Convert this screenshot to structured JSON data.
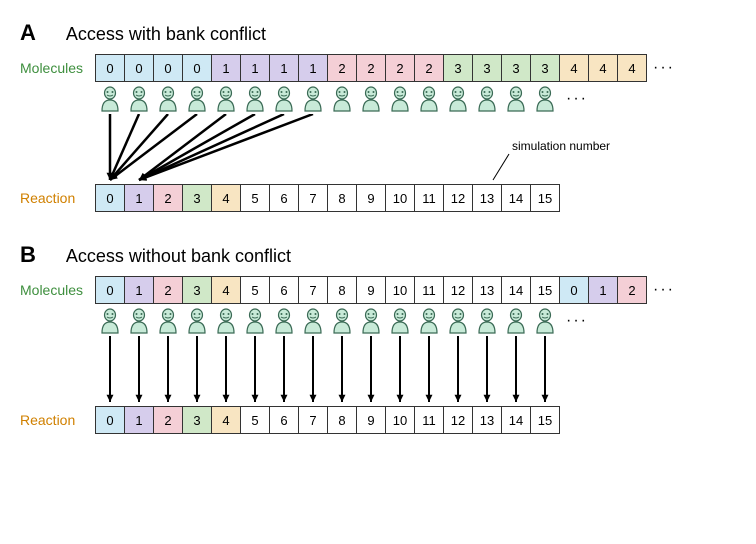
{
  "colors": {
    "c0": "#cfe9f5",
    "c1": "#d6cdec",
    "c2": "#f4cfd6",
    "c3": "#d0e8c8",
    "c4": "#f8e5c2",
    "white": "#ffffff",
    "border": "#333333",
    "label_molecules": "#3e8f3e",
    "label_reaction": "#d08000",
    "agent_fill": "#c8ead8",
    "agent_stroke": "#3a6a55",
    "text": "#222222"
  },
  "fontsize": {
    "panel_letter": 22,
    "panel_title": 18,
    "row_label": 14,
    "cell": 13,
    "annotation": 12
  },
  "cell": {
    "width": 30,
    "height": 28
  },
  "panelA": {
    "letter": "A",
    "title": "Access with bank conflict",
    "molecules_label": "Molecules",
    "molecules": [
      {
        "v": "0",
        "c": "c0"
      },
      {
        "v": "0",
        "c": "c0"
      },
      {
        "v": "0",
        "c": "c0"
      },
      {
        "v": "0",
        "c": "c0"
      },
      {
        "v": "1",
        "c": "c1"
      },
      {
        "v": "1",
        "c": "c1"
      },
      {
        "v": "1",
        "c": "c1"
      },
      {
        "v": "1",
        "c": "c1"
      },
      {
        "v": "2",
        "c": "c2"
      },
      {
        "v": "2",
        "c": "c2"
      },
      {
        "v": "2",
        "c": "c2"
      },
      {
        "v": "2",
        "c": "c2"
      },
      {
        "v": "3",
        "c": "c3"
      },
      {
        "v": "3",
        "c": "c3"
      },
      {
        "v": "3",
        "c": "c3"
      },
      {
        "v": "3",
        "c": "c3"
      },
      {
        "v": "4",
        "c": "c4"
      },
      {
        "v": "4",
        "c": "c4"
      },
      {
        "v": "4",
        "c": "c4"
      }
    ],
    "molecules_ellipsis": "···",
    "agents_count": 16,
    "agents_ellipsis": "···",
    "reaction_label": "Reaction",
    "reaction": [
      {
        "v": "0",
        "c": "c0"
      },
      {
        "v": "1",
        "c": "c1"
      },
      {
        "v": "2",
        "c": "c2"
      },
      {
        "v": "3",
        "c": "c3"
      },
      {
        "v": "4",
        "c": "c4"
      },
      {
        "v": "5",
        "c": "white"
      },
      {
        "v": "6",
        "c": "white"
      },
      {
        "v": "7",
        "c": "white"
      },
      {
        "v": "8",
        "c": "white"
      },
      {
        "v": "9",
        "c": "white"
      },
      {
        "v": "10",
        "c": "white"
      },
      {
        "v": "11",
        "c": "white"
      },
      {
        "v": "12",
        "c": "white"
      },
      {
        "v": "13",
        "c": "white"
      },
      {
        "v": "14",
        "c": "white"
      },
      {
        "v": "15",
        "c": "white"
      }
    ],
    "annotation_text": "simulation number",
    "annotation_target_index": 13,
    "arrows": {
      "group1_from_indices": [
        0,
        1,
        2,
        3
      ],
      "group1_to_index": 0,
      "group2_from_indices": [
        4,
        5,
        6,
        7
      ],
      "group2_to_index": 1
    }
  },
  "panelB": {
    "letter": "B",
    "title": "Access without bank conflict",
    "molecules_label": "Molecules",
    "molecules": [
      {
        "v": "0",
        "c": "c0"
      },
      {
        "v": "1",
        "c": "c1"
      },
      {
        "v": "2",
        "c": "c2"
      },
      {
        "v": "3",
        "c": "c3"
      },
      {
        "v": "4",
        "c": "c4"
      },
      {
        "v": "5",
        "c": "white"
      },
      {
        "v": "6",
        "c": "white"
      },
      {
        "v": "7",
        "c": "white"
      },
      {
        "v": "8",
        "c": "white"
      },
      {
        "v": "9",
        "c": "white"
      },
      {
        "v": "10",
        "c": "white"
      },
      {
        "v": "11",
        "c": "white"
      },
      {
        "v": "12",
        "c": "white"
      },
      {
        "v": "13",
        "c": "white"
      },
      {
        "v": "14",
        "c": "white"
      },
      {
        "v": "15",
        "c": "white"
      },
      {
        "v": "0",
        "c": "c0"
      },
      {
        "v": "1",
        "c": "c1"
      },
      {
        "v": "2",
        "c": "c2"
      }
    ],
    "molecules_ellipsis": "···",
    "agents_count": 16,
    "agents_ellipsis": "···",
    "reaction_label": "Reaction",
    "reaction": [
      {
        "v": "0",
        "c": "c0"
      },
      {
        "v": "1",
        "c": "c1"
      },
      {
        "v": "2",
        "c": "c2"
      },
      {
        "v": "3",
        "c": "c3"
      },
      {
        "v": "4",
        "c": "c4"
      },
      {
        "v": "5",
        "c": "white"
      },
      {
        "v": "6",
        "c": "white"
      },
      {
        "v": "7",
        "c": "white"
      },
      {
        "v": "8",
        "c": "white"
      },
      {
        "v": "9",
        "c": "white"
      },
      {
        "v": "10",
        "c": "white"
      },
      {
        "v": "11",
        "c": "white"
      },
      {
        "v": "12",
        "c": "white"
      },
      {
        "v": "13",
        "c": "white"
      },
      {
        "v": "14",
        "c": "white"
      },
      {
        "v": "15",
        "c": "white"
      }
    ],
    "arrows_from_indices": [
      0,
      1,
      2,
      3,
      4,
      5,
      6,
      7,
      8,
      9,
      10,
      11,
      12,
      13,
      14,
      15
    ]
  }
}
